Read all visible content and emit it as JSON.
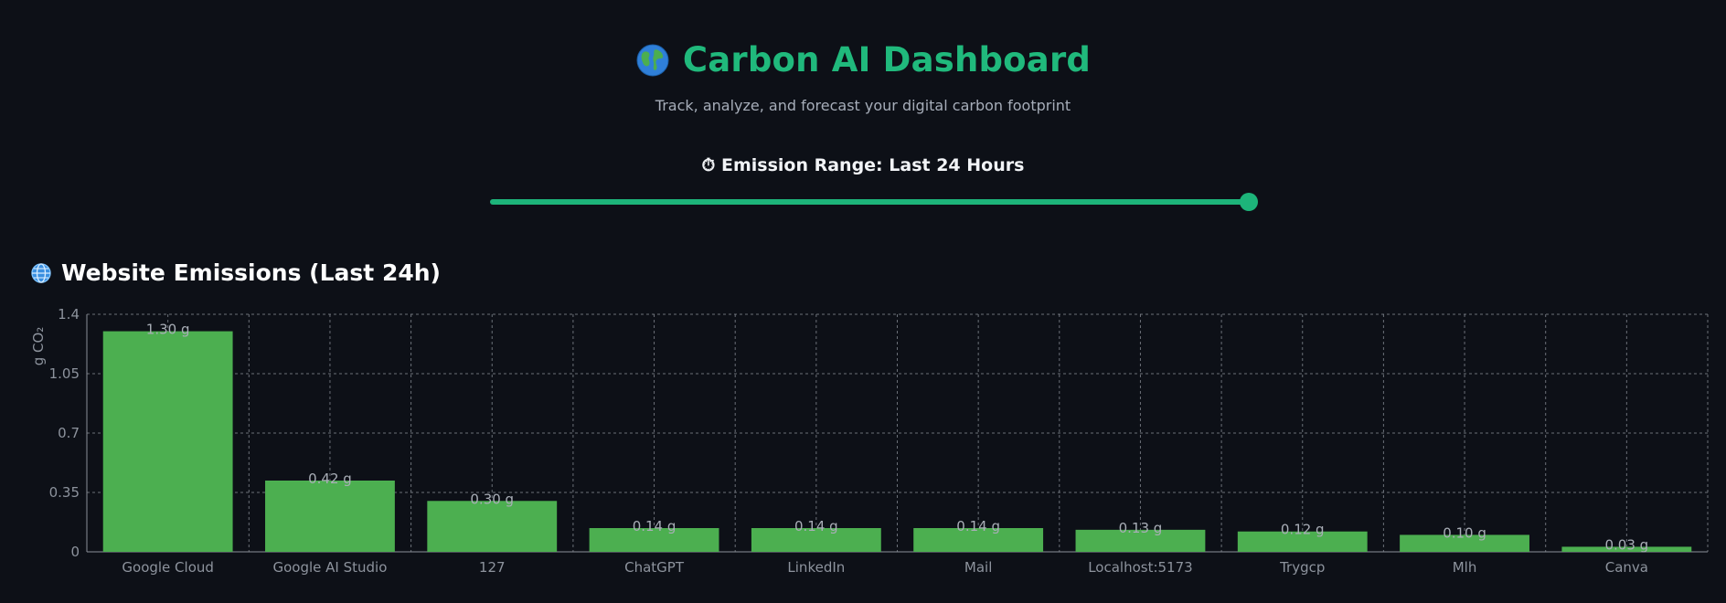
{
  "header": {
    "title": "Carbon AI Dashboard",
    "subtitle": "Track, analyze, and forecast your digital carbon footprint",
    "title_icon": "earth-globe-icon"
  },
  "range": {
    "label": "⏱ Emission Range: Last 24 Hours",
    "value_fraction": 1.0
  },
  "section": {
    "title": "Website Emissions (Last 24h)",
    "icon": "globe-network-icon"
  },
  "colors": {
    "accent": "#1db47a",
    "bar": "#4caf50",
    "background": "#0d1017"
  },
  "chart_data": {
    "type": "bar",
    "categories": [
      "Google Cloud",
      "Google AI Studio",
      "127",
      "ChatGPT",
      "LinkedIn",
      "Mail",
      "Localhost:5173",
      "Trygcp",
      "Mlh",
      "Canva"
    ],
    "values": [
      1.3,
      0.42,
      0.3,
      0.14,
      0.14,
      0.14,
      0.13,
      0.12,
      0.1,
      0.03
    ],
    "value_labels": [
      "1.30 g",
      "0.42 g",
      "0.30 g",
      "0.14 g",
      "0.14 g",
      "0.14 g",
      "0.13 g",
      "0.12 g",
      "0.10 g",
      "0.03 g"
    ],
    "ylabel": "g CO₂",
    "ylim": [
      0,
      1.4
    ],
    "yticks": [
      0,
      0.35,
      0.7,
      1.05,
      1.4
    ],
    "ytick_labels": [
      "0",
      "0.35",
      "0.7",
      "1.05",
      "1.4"
    ],
    "grid": true
  }
}
